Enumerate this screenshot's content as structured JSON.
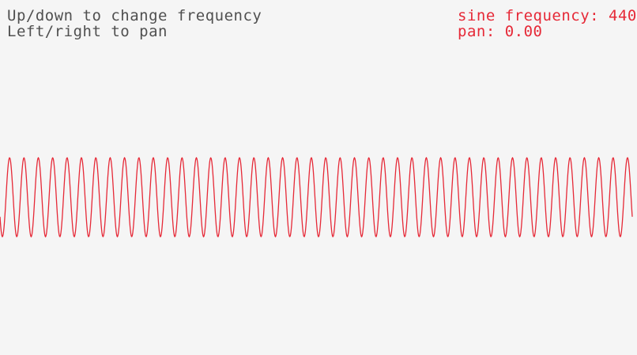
{
  "instructions": {
    "line1": "Up/down to change frequency",
    "line2": "Left/right to pan"
  },
  "status": {
    "frequency": "sine frequency: 440",
    "pan": "pan: 0.00"
  },
  "waveform": {
    "type": "sine",
    "frequency": 440,
    "pan": 0.0,
    "color": "#e62937"
  },
  "colors": {
    "background": "#f5f5f5",
    "text": "#505050",
    "accent": "#e62937"
  }
}
